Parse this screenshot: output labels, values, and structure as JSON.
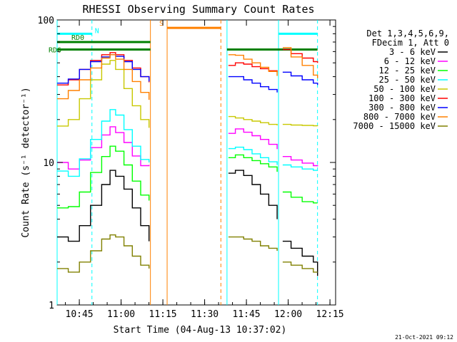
{
  "chart_data": {
    "type": "line",
    "title": "RHESSI Observing Summary Count Rates",
    "xlabel": "Start Time (04-Aug-13 10:37:02)",
    "ylabel": "Count Rate (s⁻¹ detector⁻¹)",
    "ylog": true,
    "ylim": [
      1,
      100
    ],
    "xlim_minutes_after_start": [
      0,
      100
    ],
    "x_ticks": [
      {
        "label": "10:45",
        "t": 7.97
      },
      {
        "label": "11:00",
        "t": 22.97
      },
      {
        "label": "11:15",
        "t": 37.97
      },
      {
        "label": "11:30",
        "t": 52.97
      },
      {
        "label": "11:45",
        "t": 67.97
      },
      {
        "label": "12:00",
        "t": 82.97
      },
      {
        "label": "12:15",
        "t": 97.97
      }
    ],
    "y_ticks": [
      {
        "label": "1",
        "v": 1
      },
      {
        "label": "10",
        "v": 10
      },
      {
        "label": "100",
        "v": 100
      }
    ],
    "legend_header": [
      "Det 1,3,4,5,6,9,",
      "FDecim 1, Att 0"
    ],
    "series": [
      {
        "name": "3 - 6 keV",
        "color": "#000000",
        "values": [
          [
            0,
            3.0
          ],
          [
            4,
            2.8
          ],
          [
            8,
            3.6
          ],
          [
            12,
            5.0
          ],
          [
            16,
            7.0
          ],
          [
            19,
            8.8
          ],
          [
            21,
            8.0
          ],
          [
            24,
            6.5
          ],
          [
            27,
            4.8
          ],
          [
            30,
            3.6
          ],
          [
            33,
            2.8
          ],
          [
            33.5,
            null
          ],
          [
            61,
            null
          ],
          [
            61.5,
            8.4
          ],
          [
            64,
            8.8
          ],
          [
            67,
            8.1
          ],
          [
            70,
            7.0
          ],
          [
            73,
            6.0
          ],
          [
            76,
            5.0
          ],
          [
            79,
            4.0
          ],
          [
            80,
            null
          ],
          [
            81,
            2.8
          ],
          [
            84,
            2.5
          ],
          [
            88,
            2.2
          ],
          [
            92,
            2.0
          ],
          [
            93.5,
            1.6
          ]
        ]
      },
      {
        "name": "6 - 12 keV",
        "color": "#ff00ff",
        "values": [
          [
            0,
            10.0
          ],
          [
            4,
            9.0
          ],
          [
            8,
            10.4
          ],
          [
            12,
            12.7
          ],
          [
            16,
            15.6
          ],
          [
            19,
            17.8
          ],
          [
            21,
            16.2
          ],
          [
            24,
            13.8
          ],
          [
            27,
            11.1
          ],
          [
            30,
            9.5
          ],
          [
            33,
            9.6
          ],
          [
            33.5,
            null
          ],
          [
            61,
            null
          ],
          [
            61.5,
            16.0
          ],
          [
            64,
            17.2
          ],
          [
            67,
            16.3
          ],
          [
            70,
            15.4
          ],
          [
            73,
            14.5
          ],
          [
            76,
            13.4
          ],
          [
            79,
            12.4
          ],
          [
            80,
            null
          ],
          [
            81,
            11.0
          ],
          [
            84,
            10.4
          ],
          [
            88,
            9.9
          ],
          [
            92,
            9.5
          ],
          [
            93.5,
            9.4
          ]
        ]
      },
      {
        "name": "12 - 25 keV",
        "color": "#00ff00",
        "values": [
          [
            0,
            4.8
          ],
          [
            4,
            4.9
          ],
          [
            8,
            6.2
          ],
          [
            12,
            8.5
          ],
          [
            16,
            11.0
          ],
          [
            19,
            13.0
          ],
          [
            21,
            12.0
          ],
          [
            24,
            9.6
          ],
          [
            27,
            7.4
          ],
          [
            30,
            5.9
          ],
          [
            33,
            5.4
          ],
          [
            33.5,
            null
          ],
          [
            61,
            null
          ],
          [
            61.5,
            10.8
          ],
          [
            64,
            11.3
          ],
          [
            67,
            10.8
          ],
          [
            70,
            10.3
          ],
          [
            73,
            9.8
          ],
          [
            76,
            9.3
          ],
          [
            79,
            8.6
          ],
          [
            80,
            null
          ],
          [
            81,
            6.2
          ],
          [
            84,
            5.7
          ],
          [
            88,
            5.3
          ],
          [
            92,
            5.2
          ],
          [
            93.5,
            5.2
          ]
        ]
      },
      {
        "name": "25 - 50 keV",
        "color": "#00ffff",
        "values": [
          [
            0,
            8.7
          ],
          [
            4,
            8.0
          ],
          [
            8,
            10.6
          ],
          [
            12,
            14.5
          ],
          [
            16,
            19.5
          ],
          [
            19,
            23.5
          ],
          [
            21,
            21.5
          ],
          [
            24,
            17.0
          ],
          [
            27,
            13.0
          ],
          [
            30,
            10.5
          ],
          [
            33,
            10.0
          ],
          [
            33.5,
            null
          ],
          [
            61,
            null
          ],
          [
            61.5,
            12.5
          ],
          [
            64,
            12.8
          ],
          [
            67,
            12.3
          ],
          [
            70,
            11.5
          ],
          [
            73,
            10.8
          ],
          [
            76,
            10.1
          ],
          [
            79,
            9.6
          ],
          [
            80,
            null
          ],
          [
            81,
            9.6
          ],
          [
            84,
            9.3
          ],
          [
            88,
            9.0
          ],
          [
            92,
            8.8
          ],
          [
            93.5,
            8.8
          ]
        ]
      },
      {
        "name": "50 - 100 keV",
        "color": "#c8c800",
        "values": [
          [
            0,
            18.0
          ],
          [
            4,
            20.0
          ],
          [
            8,
            28.0
          ],
          [
            12,
            38.0
          ],
          [
            16,
            49.0
          ],
          [
            19,
            52.0
          ],
          [
            21,
            45.0
          ],
          [
            24,
            33.0
          ],
          [
            27,
            25.0
          ],
          [
            30,
            20.0
          ],
          [
            33,
            17.5
          ],
          [
            33.5,
            null
          ],
          [
            61,
            null
          ],
          [
            61.5,
            21.0
          ],
          [
            64,
            20.5
          ],
          [
            67,
            20.0
          ],
          [
            70,
            19.5
          ],
          [
            73,
            19.0
          ],
          [
            76,
            18.5
          ],
          [
            79,
            18.2
          ],
          [
            80,
            null
          ],
          [
            81,
            18.5
          ],
          [
            84,
            18.3
          ],
          [
            88,
            18.2
          ],
          [
            92,
            18.1
          ],
          [
            93.5,
            18.0
          ]
        ]
      },
      {
        "name": "100 - 300 keV",
        "color": "#ff0000",
        "values": [
          [
            0,
            35.0
          ],
          [
            4,
            38.0
          ],
          [
            8,
            45.0
          ],
          [
            12,
            52.0
          ],
          [
            16,
            57.0
          ],
          [
            19,
            59.0
          ],
          [
            21,
            57.0
          ],
          [
            24,
            52.0
          ],
          [
            27,
            46.0
          ],
          [
            30,
            40.0
          ],
          [
            33,
            36.5
          ],
          [
            33.5,
            null
          ],
          [
            61,
            null
          ],
          [
            61.5,
            48.0
          ],
          [
            64,
            50.0
          ],
          [
            67,
            49.0
          ],
          [
            70,
            47.0
          ],
          [
            73,
            45.5
          ],
          [
            76,
            44.0
          ],
          [
            79,
            43.0
          ],
          [
            80,
            null
          ],
          [
            81,
            62.0
          ],
          [
            84,
            58.0
          ],
          [
            88,
            54.0
          ],
          [
            92,
            51.0
          ],
          [
            93.5,
            50.0
          ]
        ]
      },
      {
        "name": "300 - 800 keV",
        "color": "#0000ff",
        "values": [
          [
            0,
            36.0
          ],
          [
            4,
            38.5
          ],
          [
            8,
            45.0
          ],
          [
            12,
            51.0
          ],
          [
            16,
            55.0
          ],
          [
            19,
            57.0
          ],
          [
            21,
            55.5
          ],
          [
            24,
            51.0
          ],
          [
            27,
            45.0
          ],
          [
            30,
            40.0
          ],
          [
            33,
            37.0
          ],
          [
            33.5,
            null
          ],
          [
            61,
            null
          ],
          [
            61.5,
            40.0
          ],
          [
            64,
            40.0
          ],
          [
            67,
            38.0
          ],
          [
            70,
            36.0
          ],
          [
            73,
            34.0
          ],
          [
            76,
            32.5
          ],
          [
            79,
            31.0
          ],
          [
            80,
            null
          ],
          [
            81,
            43.0
          ],
          [
            84,
            40.5
          ],
          [
            88,
            38.0
          ],
          [
            92,
            36.0
          ],
          [
            93.5,
            35.0
          ]
        ]
      },
      {
        "name": "800 - 7000 keV",
        "color": "#ff8000",
        "values": [
          [
            0,
            28.0
          ],
          [
            4,
            32.0
          ],
          [
            8,
            38.0
          ],
          [
            12,
            46.0
          ],
          [
            16,
            54.0
          ],
          [
            19,
            57.0
          ],
          [
            21,
            53.0
          ],
          [
            24,
            45.0
          ],
          [
            27,
            37.0
          ],
          [
            30,
            31.0
          ],
          [
            33,
            27.5
          ],
          [
            33.5,
            null
          ],
          [
            61,
            null
          ],
          [
            61.5,
            57.0
          ],
          [
            64,
            56.5
          ],
          [
            67,
            53.0
          ],
          [
            70,
            50.0
          ],
          [
            73,
            46.5
          ],
          [
            76,
            43.5
          ],
          [
            79,
            40.5
          ],
          [
            80,
            null
          ],
          [
            81,
            64.0
          ],
          [
            84,
            55.0
          ],
          [
            88,
            48.0
          ],
          [
            92,
            41.0
          ],
          [
            93.5,
            39.0
          ]
        ]
      },
      {
        "name": "7000 - 15000 keV",
        "color": "#808000",
        "values": [
          [
            0,
            1.8
          ],
          [
            4,
            1.7
          ],
          [
            8,
            2.0
          ],
          [
            12,
            2.4
          ],
          [
            16,
            2.9
          ],
          [
            19,
            3.1
          ],
          [
            21,
            3.0
          ],
          [
            24,
            2.6
          ],
          [
            27,
            2.2
          ],
          [
            30,
            1.9
          ],
          [
            33,
            1.8
          ],
          [
            33.5,
            null
          ],
          [
            61,
            null
          ],
          [
            61.5,
            3.0
          ],
          [
            64,
            3.0
          ],
          [
            67,
            2.9
          ],
          [
            70,
            2.8
          ],
          [
            73,
            2.6
          ],
          [
            76,
            2.5
          ],
          [
            79,
            2.4
          ],
          [
            80,
            null
          ],
          [
            81,
            2.0
          ],
          [
            84,
            1.9
          ],
          [
            88,
            1.8
          ],
          [
            92,
            1.7
          ],
          [
            93.5,
            1.7
          ]
        ]
      }
    ],
    "flags": [
      {
        "label": "RD6",
        "color": "#008000",
        "value": 62,
        "segments": [
          [
            0,
            33.5
          ],
          [
            61,
            93.5
          ]
        ]
      },
      {
        "label": "RD0",
        "color": "#008000",
        "value": 70,
        "segments": [
          [
            0,
            33.5
          ]
        ]
      },
      {
        "label": "N",
        "color": "#00ffff",
        "value": 80,
        "segments": [
          [
            0,
            12.5
          ],
          [
            79.5,
            93.5
          ]
        ]
      },
      {
        "label": "S",
        "color": "#ff8000",
        "value": 88,
        "segments": [
          [
            39.5,
            58.8
          ]
        ]
      }
    ],
    "markers": [
      {
        "t": 0,
        "color": "#00ffff",
        "style": "solid"
      },
      {
        "t": 12.5,
        "color": "#00ffff",
        "style": "dashed"
      },
      {
        "t": 33.5,
        "color": "#ff8000",
        "style": "solid"
      },
      {
        "t": 39.5,
        "color": "#ff8000",
        "style": "solid"
      },
      {
        "t": 58.8,
        "color": "#ff8000",
        "style": "dashed"
      },
      {
        "t": 61,
        "color": "#00ffff",
        "style": "solid"
      },
      {
        "t": 79.5,
        "color": "#00ffff",
        "style": "solid"
      },
      {
        "t": 93.5,
        "color": "#00ffff",
        "style": "dashed"
      }
    ],
    "grid": false,
    "legend_position": "right"
  },
  "footer": {
    "timestamp": "21-Oct-2021 09:12"
  }
}
